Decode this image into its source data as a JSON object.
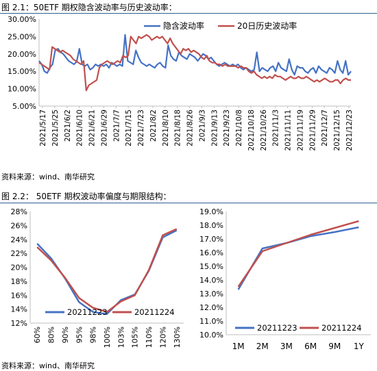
{
  "figure1": {
    "title": "图 2.1：50ETF 期权隐含波动率与历史波动率：",
    "source": "资料来源：wind、南华研究"
  },
  "figure2": {
    "title": "图 2.2：  50ETF 期权波动率偏度与期限结构：",
    "source": "资料来源：wind、南华研究"
  },
  "colors": {
    "blue": "#4472c4",
    "red": "#c0504d"
  },
  "chart_data": [
    {
      "id": "iv_hv",
      "type": "line",
      "title": "",
      "ylim": [
        5,
        30
      ],
      "yticks": [
        5,
        10,
        15,
        20,
        25,
        30
      ],
      "ytick_labels": [
        "5.00%",
        "10.00%",
        "15.00%",
        "20.00%",
        "25.00%",
        "30.00%"
      ],
      "x_labels": [
        "2021/5/17",
        "2021/5/25",
        "2021/6/2",
        "2021/6/10",
        "2021/6/21",
        "2021/6/29",
        "2021/7/7",
        "2021/7/15",
        "2021/7/23",
        "2021/8/2",
        "2021/8/10",
        "2021/8/18",
        "2021/8/26",
        "2021/9/3",
        "2021/9/13",
        "2021/9/23",
        "2021/10/8",
        "2021/10/18",
        "2021/10/26",
        "2021/11/3",
        "2021/11/11",
        "2021/11/19",
        "2021/11/29",
        "2021/12/7",
        "2021/12/15",
        "2021/12/23"
      ],
      "legend": "top-center",
      "grid": false,
      "series": [
        {
          "name": "隐含波动率",
          "color": "#4472c4",
          "values": [
            18.0,
            17.0,
            15.0,
            14.5,
            16.0,
            17.0,
            21.0,
            21.5,
            20.5,
            20.0,
            19.0,
            18.0,
            17.5,
            17.0,
            17.8,
            21.5,
            17.0,
            16.5,
            17.0,
            15.5,
            16.0,
            17.0,
            16.5,
            17.0,
            16.5,
            17.0,
            16.0,
            17.5,
            17.0,
            16.5,
            17.0,
            16.5,
            25.5,
            18.0,
            17.5,
            17.0,
            21.0,
            19.0,
            17.5,
            17.0,
            16.5,
            17.0,
            16.5,
            16.0,
            17.0,
            17.5,
            16.5,
            16.0,
            22.5,
            19.5,
            18.5,
            18.0,
            20.5,
            19.5,
            19.0,
            18.5,
            20.0,
            19.5,
            19.0,
            18.0,
            19.0,
            20.0,
            19.5,
            18.5,
            19.0,
            18.0,
            17.0,
            16.5,
            17.0,
            17.5,
            17.0,
            16.5,
            17.0,
            16.5,
            17.0,
            16.0,
            15.5,
            16.0,
            15.5,
            15.0,
            15.5,
            20.5,
            15.0,
            16.0,
            15.5,
            15.0,
            16.0,
            16.5,
            15.0,
            17.5,
            16.0,
            15.5,
            15.0,
            18.5,
            15.5,
            14.0,
            16.5,
            16.0,
            16.0,
            15.0,
            14.5,
            15.5,
            16.0,
            14.5,
            16.5,
            15.5,
            15.0,
            14.5,
            16.0,
            15.5,
            14.5,
            18.0,
            15.5,
            14.5,
            18.0,
            14.0,
            15.0
          ]
        },
        {
          "name": "20日历史波动率",
          "color": "#c0504d",
          "values": [
            17.5,
            17.0,
            16.5,
            16.0,
            15.5,
            22.0,
            21.5,
            21.0,
            20.5,
            21.0,
            20.5,
            20.0,
            19.5,
            18.5,
            18.0,
            17.5,
            17.0,
            18.0,
            9.5,
            11.0,
            11.5,
            12.0,
            12.5,
            16.0,
            17.0,
            17.5,
            18.0,
            17.5,
            17.0,
            17.5,
            18.0,
            17.5,
            19.5,
            19.0,
            19.5,
            25.0,
            24.0,
            23.0,
            25.0,
            24.5,
            25.0,
            25.5,
            25.0,
            24.0,
            24.5,
            25.0,
            24.5,
            25.0,
            24.0,
            23.0,
            24.5,
            23.0,
            22.0,
            21.0,
            20.0,
            21.5,
            21.0,
            21.5,
            20.5,
            21.0,
            20.5,
            20.0,
            19.0,
            18.5,
            19.5,
            18.0,
            17.5,
            17.5,
            17.0,
            17.0,
            16.5,
            17.0,
            16.5,
            16.5,
            16.5,
            16.5,
            16.0,
            16.5,
            16.0,
            16.0,
            15.0,
            14.5,
            15.0,
            14.0,
            13.5,
            13.0,
            13.5,
            13.0,
            13.5,
            13.0,
            14.0,
            13.5,
            13.5,
            13.0,
            12.5,
            13.0,
            13.5,
            13.0,
            13.0,
            13.5,
            13.0,
            13.0,
            13.5,
            13.0,
            12.5,
            12.0,
            12.5,
            12.0,
            12.5,
            13.0,
            12.5,
            12.0,
            12.0,
            12.5,
            12.5,
            11.5,
            12.5,
            13.0,
            12.5,
            12.5
          ]
        }
      ]
    },
    {
      "id": "skew",
      "type": "line",
      "title": "",
      "categories": [
        "60%",
        "80%",
        "90%",
        "95%",
        "98%",
        "100%",
        "103%",
        "105%",
        "110%",
        "120%",
        "130%"
      ],
      "ylim": [
        12,
        28
      ],
      "yticks": [
        12,
        14,
        16,
        18,
        20,
        22,
        24,
        26,
        28
      ],
      "ytick_labels": [
        "12%",
        "14%",
        "16%",
        "18%",
        "20%",
        "22%",
        "24%",
        "26%",
        "28%"
      ],
      "legend": "bottom",
      "grid": false,
      "series": [
        {
          "name": "20211223",
          "color": "#4472c4",
          "values": [
            23.4,
            21.3,
            18.4,
            15.0,
            13.6,
            13.3,
            15.3,
            16.1,
            19.5,
            24.3,
            25.3
          ]
        },
        {
          "name": "20211224",
          "color": "#c0504d",
          "values": [
            22.9,
            21.0,
            18.5,
            15.6,
            14.2,
            13.6,
            15.1,
            16.0,
            19.6,
            24.6,
            25.5
          ]
        }
      ]
    },
    {
      "id": "term",
      "type": "line",
      "title": "",
      "categories": [
        "1M",
        "2M",
        "3M",
        "6M",
        "9M",
        "1Y"
      ],
      "ylim": [
        10,
        19
      ],
      "yticks": [
        10,
        11,
        12,
        13,
        14,
        15,
        16,
        17,
        18,
        19
      ],
      "ytick_labels": [
        "10.0%",
        "11.0%",
        "12.0%",
        "13.0%",
        "14.0%",
        "15.0%",
        "16.0%",
        "17.0%",
        "18.0%",
        "19.0%"
      ],
      "legend": "bottom",
      "grid": false,
      "series": [
        {
          "name": "20211223",
          "color": "#4472c4",
          "values": [
            13.3,
            16.3,
            16.7,
            17.2,
            17.5,
            17.85
          ]
        },
        {
          "name": "20211224",
          "color": "#c0504d",
          "values": [
            13.5,
            16.1,
            16.7,
            17.3,
            17.8,
            18.3
          ]
        }
      ]
    }
  ]
}
